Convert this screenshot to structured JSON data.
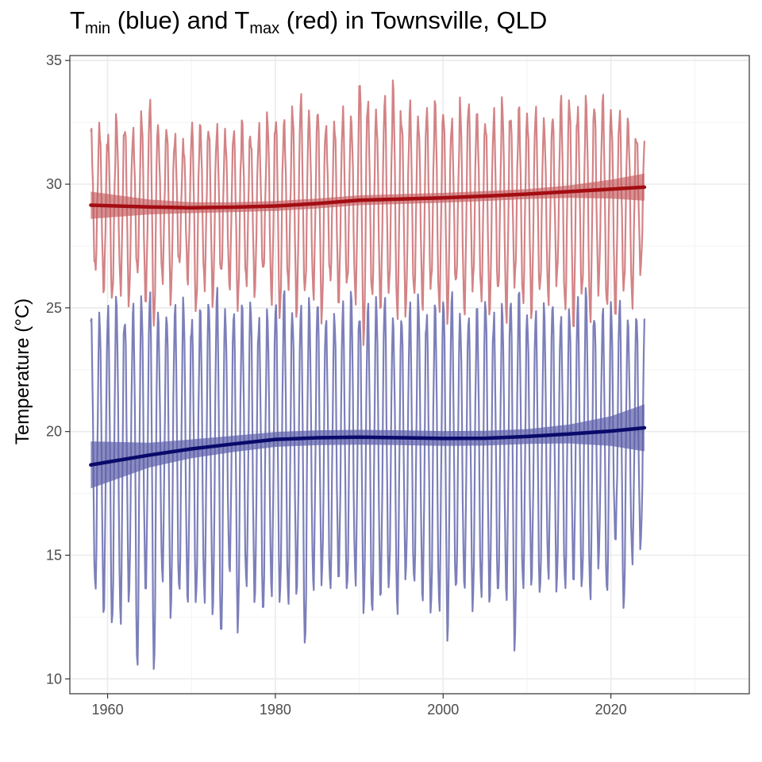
{
  "title": {
    "t1": "T",
    "sub1": "min",
    "mid": " (blue) and T",
    "sub2": "max",
    "end": " (red) in Townsville, QLD"
  },
  "chart_data": {
    "type": "line",
    "ylabel": "Temperature (°C)",
    "xlabel": "",
    "xlim": [
      1955.5,
      2036.5
    ],
    "ylim": [
      9.4,
      35.2
    ],
    "x_ticks": [
      1960,
      1980,
      2000,
      2020
    ],
    "y_ticks": [
      10,
      15,
      20,
      25,
      30,
      35
    ],
    "x_tick_labels": [
      "1960",
      "1980",
      "2000",
      "2020"
    ],
    "y_tick_labels": [
      "10",
      "15",
      "20",
      "25",
      "30",
      "35"
    ],
    "grid": true,
    "colors": {
      "tmax_raw": "#c4595e",
      "tmax_trend": "#a30d12",
      "tmax_band": "#b8383d",
      "tmin_raw": "#5b5fa8",
      "tmin_trend": "#0a0a6b",
      "tmin_band": "#2c3092"
    },
    "series": [
      {
        "id": "tmax_monthly",
        "start": 1958.0,
        "end": 2024.0,
        "mean": 29.3,
        "seasonal_amplitude": 2.9,
        "peak_month_fraction": 0.04,
        "annual_peaks_approx": [
          32.2,
          32.5,
          32.0,
          32.8,
          32.3,
          31.9,
          32.6,
          33.2,
          32.1,
          32.4,
          32.0,
          31.8,
          32.5,
          32.3,
          32.1,
          32.0,
          31.8,
          32.2,
          32.6,
          32.1,
          32.4,
          32.8,
          32.5,
          32.3,
          32.9,
          33.4,
          32.7,
          33.2,
          32.4,
          32.6,
          33.0,
          32.5,
          34.1,
          33.0,
          32.7,
          33.6,
          34.2,
          32.8,
          33.3,
          32.6,
          32.9,
          33.1,
          32.7,
          32.4,
          33.3,
          33.5,
          33.0,
          32.6,
          32.8,
          33.2,
          32.5,
          32.9,
          32.7,
          33.1,
          32.6,
          33.0,
          33.5,
          33.3,
          32.8,
          33.2,
          33.1,
          33.5,
          32.9,
          33.1,
          32.7,
          32.0
        ]
      },
      {
        "id": "tmin_monthly",
        "start": 1958.0,
        "end": 2024.0,
        "mean": 19.3,
        "seasonal_amplitude": 5.3,
        "peak_month_fraction": 0.04,
        "annual_troughs_approx": [
          13.4,
          12.5,
          11.9,
          12.3,
          13.3,
          10.5,
          13.8,
          10.4,
          14.0,
          12.5,
          13.2,
          13.0,
          13.0,
          13.3,
          12.9,
          11.8,
          14.5,
          11.9,
          13.6,
          13.0,
          12.4,
          13.5,
          13.3,
          13.2,
          13.7,
          11.3,
          13.6,
          13.8,
          13.4,
          14.0,
          13.5,
          14.1,
          13.0,
          12.7,
          13.4,
          13.6,
          12.5,
          14.0,
          13.7,
          13.3,
          12.8,
          13.0,
          11.8,
          13.5,
          13.6,
          12.6,
          13.2,
          13.1,
          13.4,
          13.5,
          11.4,
          13.7,
          13.9,
          13.2,
          14.0,
          13.5,
          13.6,
          14.1,
          13.8,
          13.5,
          14.8,
          13.3,
          15.5,
          12.6,
          14.7,
          15.4
        ]
      },
      {
        "id": "tmax_trend",
        "x": [
          1958,
          1965,
          1970,
          1975,
          1980,
          1985,
          1990,
          1995,
          2000,
          2005,
          2010,
          2015,
          2020,
          2024
        ],
        "values": [
          29.15,
          29.08,
          29.05,
          29.07,
          29.12,
          29.22,
          29.35,
          29.4,
          29.45,
          29.52,
          29.6,
          29.7,
          29.8,
          29.88
        ],
        "ci_half_width": [
          0.55,
          0.3,
          0.22,
          0.2,
          0.2,
          0.2,
          0.2,
          0.2,
          0.2,
          0.2,
          0.2,
          0.25,
          0.38,
          0.55
        ]
      },
      {
        "id": "tmin_trend",
        "x": [
          1958,
          1965,
          1970,
          1975,
          1980,
          1985,
          1990,
          1995,
          2000,
          2005,
          2010,
          2015,
          2020,
          2024
        ],
        "values": [
          18.65,
          19.05,
          19.3,
          19.5,
          19.68,
          19.75,
          19.77,
          19.75,
          19.72,
          19.73,
          19.8,
          19.9,
          20.02,
          20.15
        ],
        "ci_half_width": [
          0.95,
          0.5,
          0.38,
          0.33,
          0.3,
          0.3,
          0.3,
          0.3,
          0.3,
          0.3,
          0.3,
          0.38,
          0.6,
          0.95
        ]
      }
    ]
  }
}
